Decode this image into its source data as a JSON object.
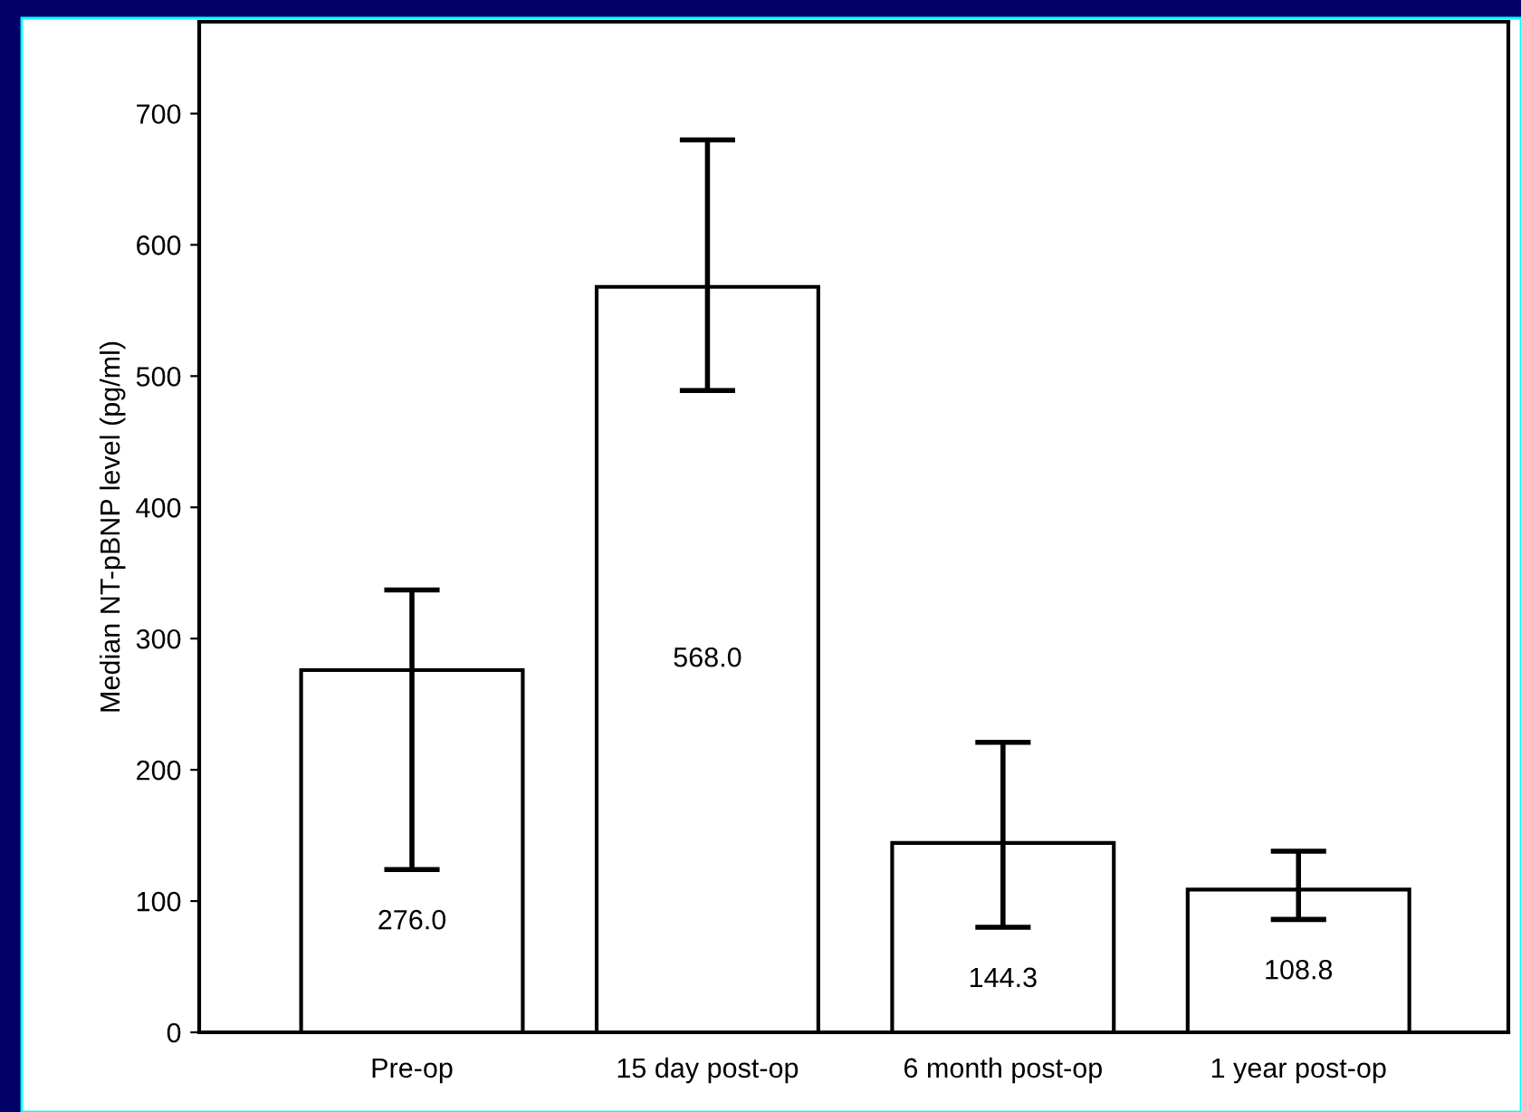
{
  "chart_data": {
    "type": "bar",
    "ylabel": "Median NT-pBNP level (pg/ml)",
    "categories": [
      "Pre-op",
      "15 day post-op",
      "6 month post-op",
      "1 year post-op"
    ],
    "values": [
      276.0,
      568.0,
      144.3,
      108.8
    ],
    "errors": [
      [
        124,
        337
      ],
      [
        489,
        680
      ],
      [
        80,
        221
      ],
      [
        86,
        138
      ]
    ],
    "value_labels": [
      "276.0",
      "568.0",
      "144.3",
      "108.8"
    ],
    "color": "#ffffff",
    "ylim": [
      0,
      770
    ],
    "yticks": [
      0,
      100,
      200,
      300,
      400,
      500,
      600,
      700
    ],
    "grid": false
  }
}
